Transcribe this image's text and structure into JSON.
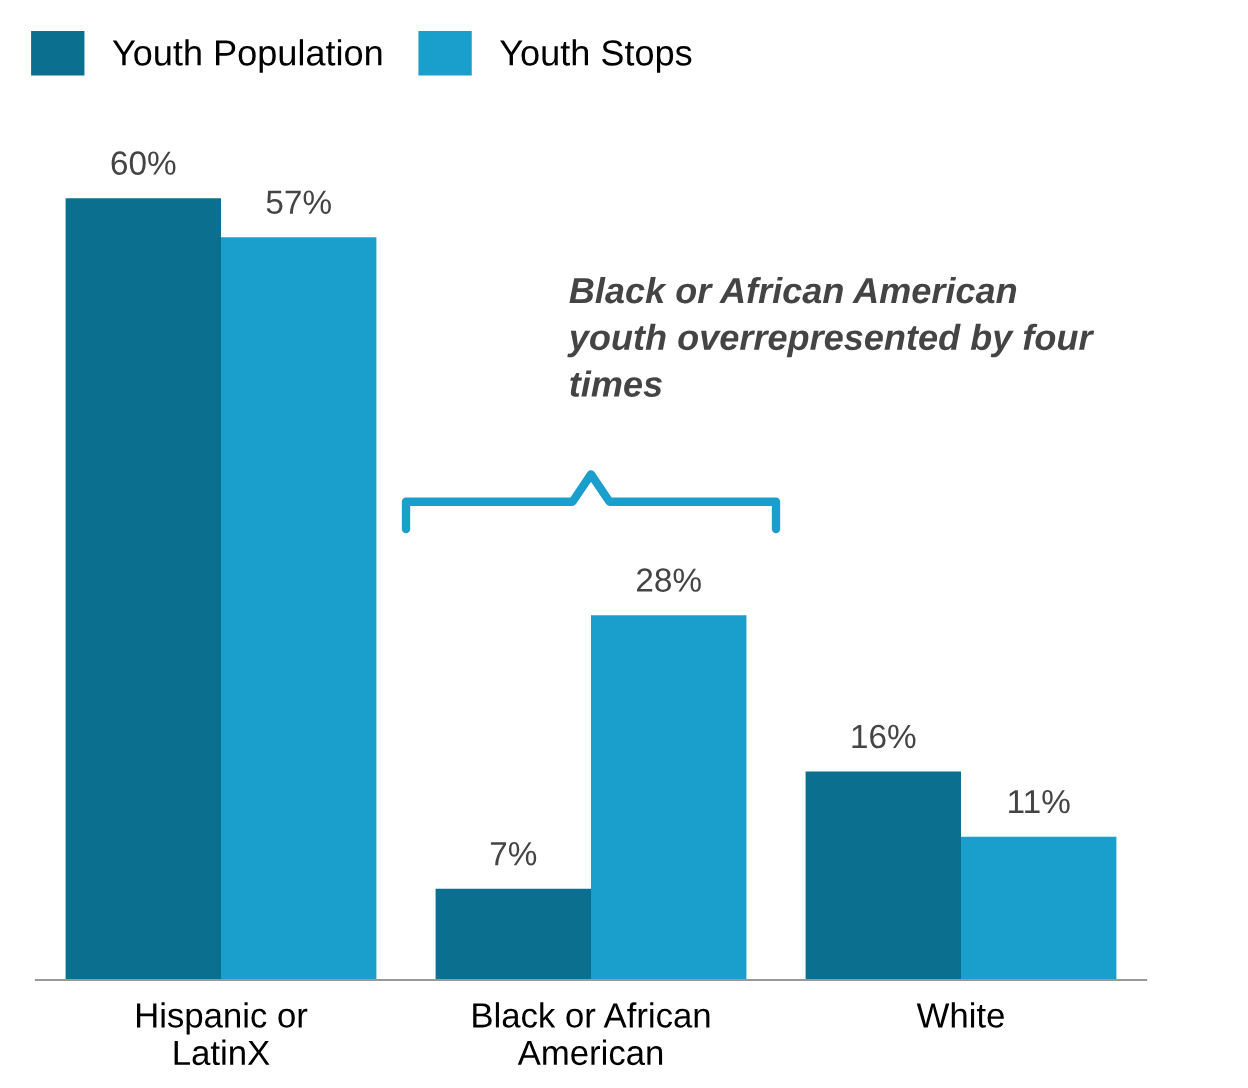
{
  "chart_data": {
    "type": "bar",
    "categories": [
      "Hispanic or\nLatinX",
      "Black or African\nAmerican",
      "White"
    ],
    "series": [
      {
        "name": "Youth Population",
        "color": "#0b6f8f",
        "values": [
          60,
          7,
          16
        ],
        "value_labels": [
          "60%",
          "7%",
          "16%"
        ]
      },
      {
        "name": "Youth Stops",
        "color": "#1a9fcc",
        "values": [
          57,
          28,
          11
        ],
        "value_labels": [
          "57%",
          "28%",
          "11%"
        ]
      }
    ],
    "legend": "top left",
    "annotations": [
      "Black or African American\nyouth overrepresented by four\ntimes"
    ]
  }
}
